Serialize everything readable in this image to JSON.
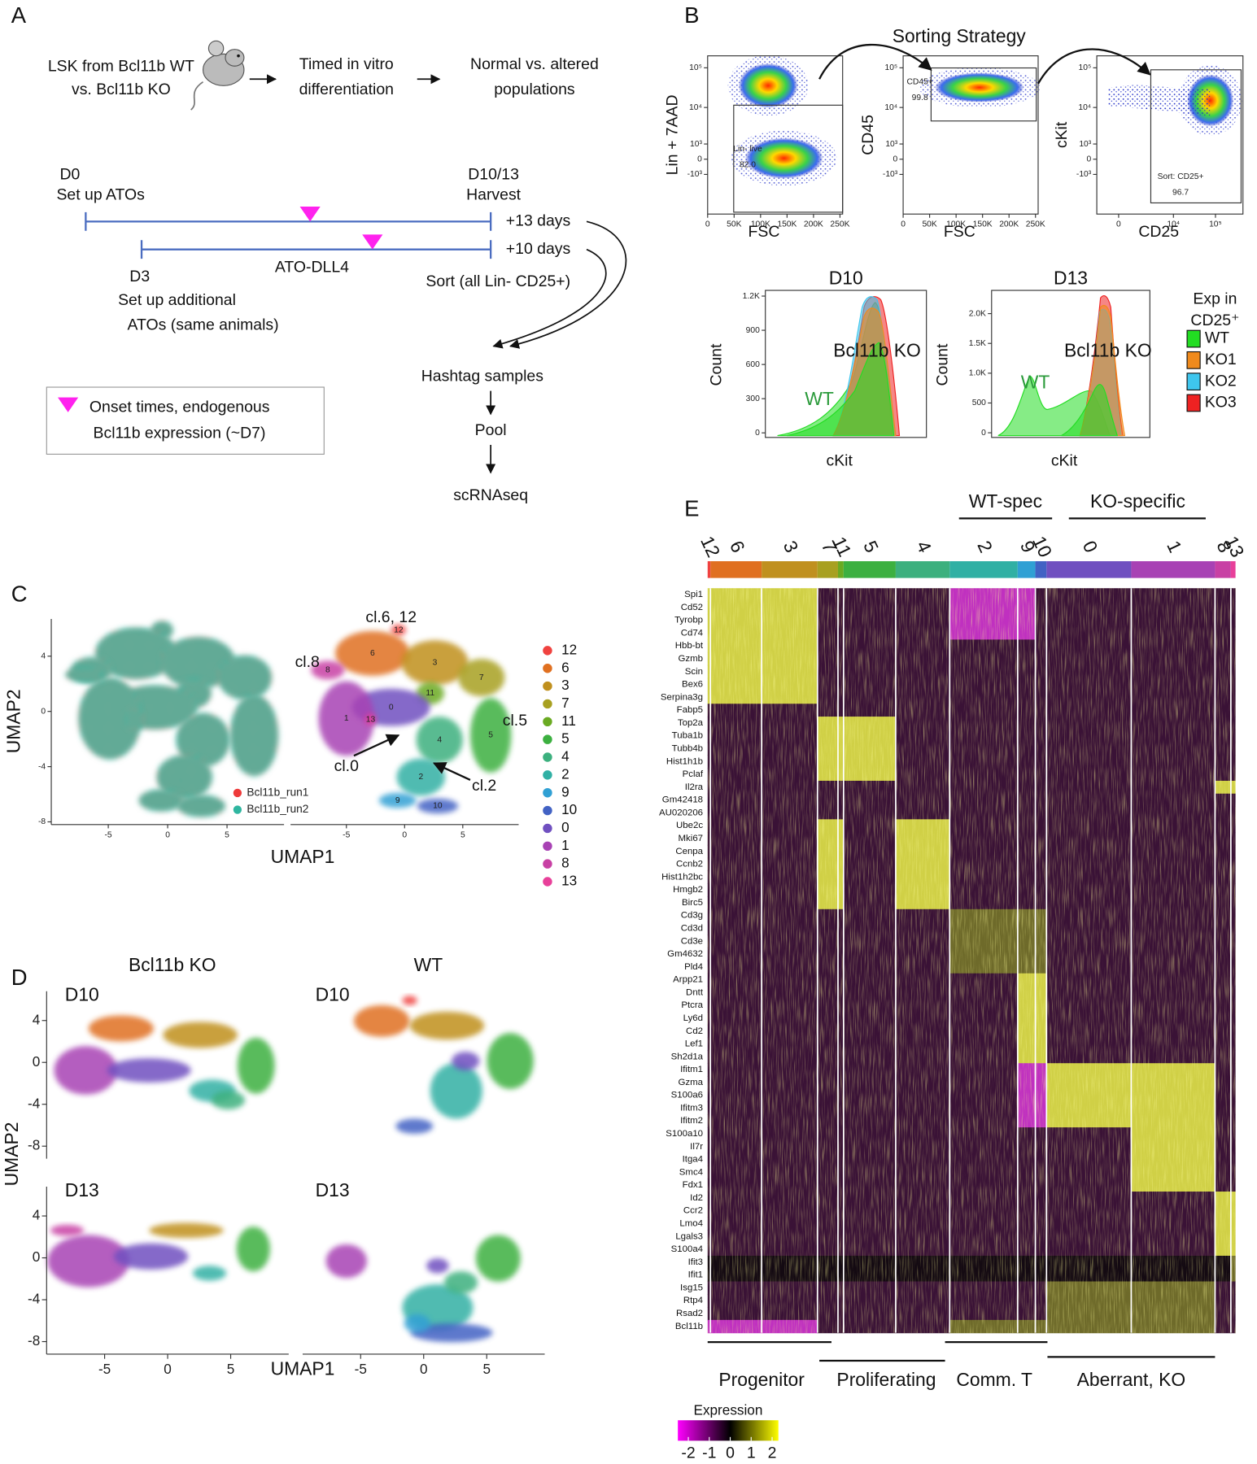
{
  "panel_a": {
    "label": "A",
    "source": [
      "LSK from Bcl11b WT",
      "vs. Bcl11b KO"
    ],
    "step2": [
      "Timed in vitro",
      "differentiation"
    ],
    "step3": [
      "Normal vs. altered",
      "populations"
    ],
    "d0": [
      "D0",
      "Set up ATOs"
    ],
    "harvest": [
      "D10/13",
      "Harvest"
    ],
    "plus13": "+13 days",
    "plus10": "+10 days",
    "ato": "ATO-DLL4",
    "d3": [
      "D3",
      "Set up additional",
      "ATOs (same animals)"
    ],
    "sort": "Sort (all Lin- CD25+)",
    "flow": [
      "Hashtag samples",
      "Pool",
      "scRNAseq"
    ],
    "legend": [
      "Onset times, endogenous",
      "Bcl11b expression (~D7)"
    ]
  },
  "panel_b": {
    "label": "B",
    "title": "Sorting Strategy",
    "flow_plots": [
      {
        "ylabel": "Lin + 7AAD",
        "xlabel": "FSC",
        "gate": "Lin- live",
        "gate_value": "82.0",
        "xscale": "linear",
        "xlim": [
          0,
          255000
        ],
        "xticks": [
          0,
          {
            "value": 50000,
            "label": "50K"
          },
          {
            "value": 100000,
            "label": "100K"
          },
          {
            "value": 150000,
            "label": "150K"
          },
          {
            "value": 200000,
            "label": "200K"
          },
          {
            "value": 250000,
            "label": "250K"
          }
        ],
        "yscale": "biexponential",
        "ylim": [
          -12000,
          200000
        ],
        "yticks": [
          {
            "value": -1000,
            "label": "-10³"
          },
          0,
          {
            "value": 1000,
            "label": "10³"
          },
          {
            "value": 10000,
            "label": "10⁴"
          },
          {
            "value": 100000,
            "label": "10⁵"
          }
        ]
      },
      {
        "ylabel": "CD45",
        "xlabel": "FSC",
        "gate": "CD45+",
        "gate_value": "99.8",
        "xscale": "linear",
        "xlim": [
          0,
          255000
        ],
        "xticks": [
          0,
          {
            "value": 50000,
            "label": "50K"
          },
          {
            "value": 100000,
            "label": "100K"
          },
          {
            "value": 150000,
            "label": "150K"
          },
          {
            "value": 200000,
            "label": "200K"
          },
          {
            "value": 250000,
            "label": "250K"
          }
        ],
        "yscale": "biexponential",
        "ylim": [
          -12000,
          200000
        ],
        "yticks": [
          {
            "value": -1000,
            "label": "-10³"
          },
          0,
          {
            "value": 1000,
            "label": "10³"
          },
          {
            "value": 10000,
            "label": "10⁴"
          },
          {
            "value": 100000,
            "label": "10⁵"
          }
        ]
      },
      {
        "ylabel": "cKit",
        "xlabel": "CD25",
        "gate": "Sort: CD25+",
        "gate_value": "96.7",
        "xscale": "biexponential",
        "xlim": [
          -1500,
          450000
        ],
        "xticks": [
          0,
          {
            "value": 10000,
            "label": "10⁴"
          },
          {
            "value": 100000,
            "label": "10⁵"
          }
        ],
        "yscale": "biexponential",
        "ylim": [
          -12000,
          200000
        ],
        "yticks": [
          {
            "value": -1000,
            "label": "-10³"
          },
          0,
          {
            "value": 1000,
            "label": "10³"
          },
          {
            "value": 10000,
            "label": "10⁴"
          },
          {
            "value": 100000,
            "label": "10⁵"
          }
        ]
      }
    ],
    "histograms": [
      {
        "title": "D10",
        "ylabel": "Count",
        "xlabel": "cKit",
        "wt": "WT",
        "ko": "Bcl11b KO",
        "yscale": "linear",
        "ylim": [
          -40,
          1250
        ],
        "yticks": [
          0,
          300,
          600,
          900,
          {
            "value": 1200,
            "label": "1.2K"
          }
        ]
      },
      {
        "title": "D13",
        "ylabel": "Count",
        "xlabel": "cKit",
        "wt": "WT",
        "ko": "Bcl11b KO",
        "yscale": "linear",
        "ylim": [
          -78,
          2390
        ],
        "yticks": [
          0,
          500,
          {
            "value": 1000,
            "label": "1.0K"
          },
          {
            "value": 1500,
            "label": "1.5K"
          },
          {
            "value": 2000,
            "label": "2.0K"
          }
        ]
      }
    ],
    "legend": {
      "title": [
        "Exp in",
        "CD25⁺"
      ],
      "series": [
        {
          "name": "WT",
          "color": "#22dd22"
        },
        {
          "name": "KO1",
          "color": "#f08a1c"
        },
        {
          "name": "KO2",
          "color": "#3ec6ee"
        },
        {
          "name": "KO3",
          "color": "#ee2222"
        }
      ]
    }
  },
  "panel_c": {
    "label": "C",
    "ylabel": "UMAP2",
    "xlabel": "UMAP1",
    "xscale": "linear",
    "xlim": [
      -9.8,
      9.8
    ],
    "xticks": [
      -5,
      0,
      5
    ],
    "yscale": "linear",
    "ylim": [
      -8.2,
      6.7
    ],
    "yticks": [
      -8,
      -4,
      0,
      4
    ],
    "runs": [
      {
        "name": "Bcl11b_run1",
        "color": "#ee3b3b"
      },
      {
        "name": "Bcl11b_run2",
        "color": "#2fb6a0"
      }
    ],
    "callouts": [
      "cl.6, 12",
      "cl.8",
      "cl.0",
      "cl.2",
      "cl.5"
    ],
    "clusters": [
      {
        "name": "12",
        "color": "#f0423f"
      },
      {
        "name": "6",
        "color": "#e07020"
      },
      {
        "name": "3",
        "color": "#c0901e"
      },
      {
        "name": "7",
        "color": "#a8a020"
      },
      {
        "name": "11",
        "color": "#6aaa22"
      },
      {
        "name": "5",
        "color": "#3cb040"
      },
      {
        "name": "4",
        "color": "#3cb07e"
      },
      {
        "name": "2",
        "color": "#30b0a4"
      },
      {
        "name": "9",
        "color": "#30a0d4"
      },
      {
        "name": "10",
        "color": "#4262c4"
      },
      {
        "name": "0",
        "color": "#7050c0"
      },
      {
        "name": "1",
        "color": "#a842b4"
      },
      {
        "name": "8",
        "color": "#c840a4"
      },
      {
        "name": "13",
        "color": "#e8409a"
      }
    ]
  },
  "panel_d": {
    "label": "D",
    "columns": [
      "Bcl11b KO",
      "WT"
    ],
    "rows": [
      "D10",
      "D13"
    ],
    "ylabel": "UMAP2",
    "xlabel": "UMAP1",
    "xscale": "linear",
    "xlim": [
      -9.6,
      9.6
    ],
    "xticks": [
      -5,
      0,
      5
    ],
    "yscale": "linear",
    "ylim": [
      -9.2,
      6.8
    ],
    "yticks": [
      -8,
      -4,
      0,
      4
    ]
  },
  "panel_e": {
    "label": "E",
    "clusters": [
      "12",
      "6",
      "3",
      "7",
      "11",
      "5",
      "4",
      "2",
      "9",
      "10",
      "0",
      "1",
      "8",
      "13"
    ],
    "groups_top": [
      "WT-spec",
      "KO-specific"
    ],
    "genes": [
      "Spi1",
      "Cd52",
      "Tyrobp",
      "Cd74",
      "Hbb-bt",
      "Gzmb",
      "Scin",
      "Bex6",
      "Serpina3g",
      "Fabp5",
      "Top2a",
      "Tuba1b",
      "Tubb4b",
      "Hist1h1b",
      "Pclaf",
      "Il2ra",
      "Gm42418",
      "AU020206",
      "Ube2c",
      "Mki67",
      "Cenpa",
      "Ccnb2",
      "Hist1h2bc",
      "Hmgb2",
      "Birc5",
      "Cd3g",
      "Cd3d",
      "Cd3e",
      "Gm4632",
      "Pld4",
      "Arpp21",
      "Dntt",
      "Ptcra",
      "Ly6d",
      "Cd2",
      "Lef1",
      "Sh2d1a",
      "Ifitm1",
      "Gzma",
      "S100a6",
      "Ifitm3",
      "Ifitm2",
      "S100a10",
      "Il7r",
      "Itga4",
      "Smc4",
      "Fdx1",
      "Id2",
      "Ccr2",
      "Lmo4",
      "Lgals3",
      "S100a4",
      "Ifit3",
      "Ifit1",
      "Isg15",
      "Rtp4",
      "Rsad2",
      "Bcl11b"
    ],
    "groups_bottom": [
      "Progenitor",
      "Proliferating",
      "Comm. T",
      "Aberrant, KO"
    ],
    "colorbar": {
      "title": "Expression",
      "lim": [
        -2.5,
        2.3
      ],
      "ticks": [
        -2,
        -1,
        0,
        1,
        2
      ]
    }
  }
}
